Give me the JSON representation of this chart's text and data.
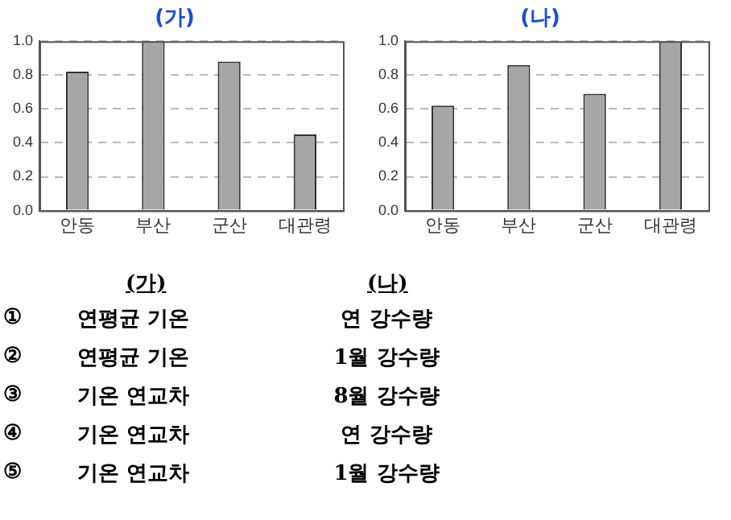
{
  "chart_data": [
    {
      "type": "bar",
      "title": "(가)",
      "categories": [
        "안동",
        "부산",
        "군산",
        "대관령"
      ],
      "values": [
        0.82,
        1.0,
        0.88,
        0.45
      ],
      "color": "#a6a6a6",
      "ylim": [
        0,
        1
      ],
      "yticks": [
        {
          "value": 0,
          "label": "0.0"
        },
        {
          "value": 0.2,
          "label": "0.2"
        },
        {
          "value": 0.4,
          "label": "0.4"
        },
        {
          "value": 0.6,
          "label": "0.6"
        },
        {
          "value": 0.8,
          "label": "0.8"
        },
        {
          "value": 1,
          "label": "1.0"
        }
      ],
      "grid": "y"
    },
    {
      "type": "bar",
      "title": "(나)",
      "categories": [
        "안동",
        "부산",
        "군산",
        "대관령"
      ],
      "values": [
        0.62,
        0.86,
        0.69,
        1.0
      ],
      "color": "#a6a6a6",
      "ylim": [
        0,
        1
      ],
      "yticks": [
        {
          "value": 0,
          "label": "0.0"
        },
        {
          "value": 0.2,
          "label": "0.2"
        },
        {
          "value": 0.4,
          "label": "0.4"
        },
        {
          "value": 0.6,
          "label": "0.6"
        },
        {
          "value": 0.8,
          "label": "0.8"
        },
        {
          "value": 1,
          "label": "1.0"
        }
      ],
      "grid": "y"
    },
    {
      "type": "other",
      "annotations": [
        "(가)",
        "(나)",
        "①",
        "연평균 기온",
        "연 강수량",
        "②",
        "연평균 기온",
        "1월 강수량",
        "③",
        "기온 연교차",
        "8월 강수량",
        "④",
        "기온 연교차",
        "연 강수량",
        "⑤",
        "기온 연교차",
        "1월 강수량"
      ]
    }
  ]
}
